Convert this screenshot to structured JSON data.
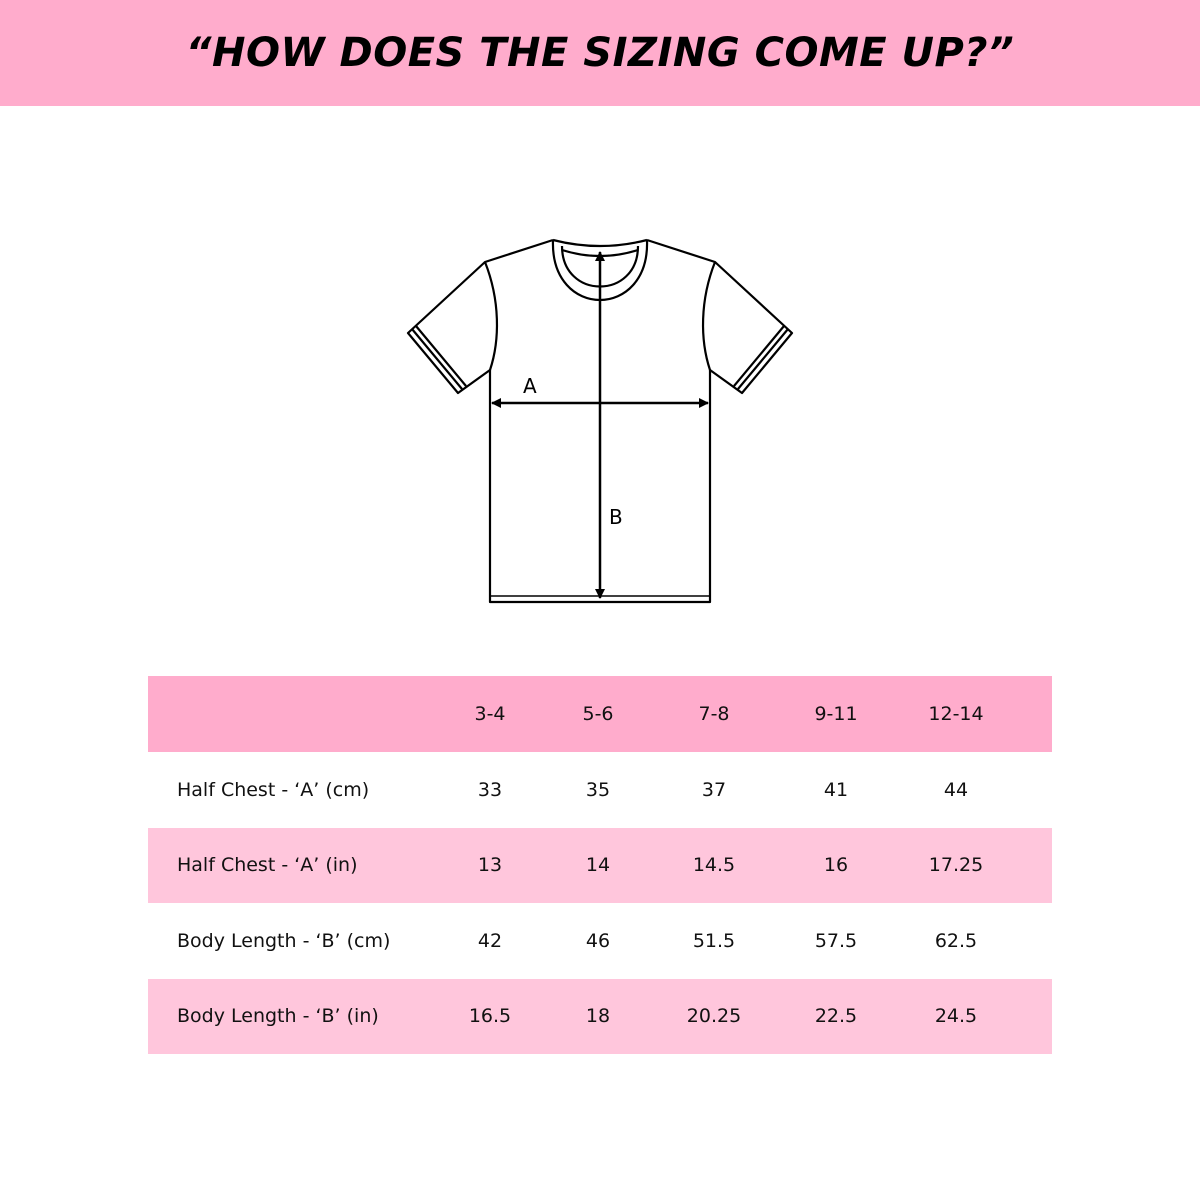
{
  "title": "“HOW DOES THE SIZING COME UP?”",
  "diagram": {
    "label_a": "A",
    "label_b": "B"
  },
  "table": {
    "headers": [
      "",
      "3-4",
      "5-6",
      "7-8",
      "9-11",
      "12-14"
    ],
    "rows": [
      {
        "label": "Half Chest - ‘A’ (cm)",
        "values": [
          "33",
          "35",
          "37",
          "41",
          "44"
        ]
      },
      {
        "label": "Half Chest - ‘A’ (in)",
        "values": [
          "13",
          "14",
          "14.5",
          "16",
          "17.25"
        ]
      },
      {
        "label": "Body Length - ‘B’ (cm)",
        "values": [
          "42",
          "46",
          "51.5",
          "57.5",
          "62.5"
        ]
      },
      {
        "label": "Body Length - ‘B’ (in)",
        "values": [
          "16.5",
          "18",
          "20.25",
          "22.5",
          "24.5"
        ]
      }
    ]
  },
  "colors": {
    "header": "#ffaccc",
    "stripe": "#ffc6dc"
  }
}
